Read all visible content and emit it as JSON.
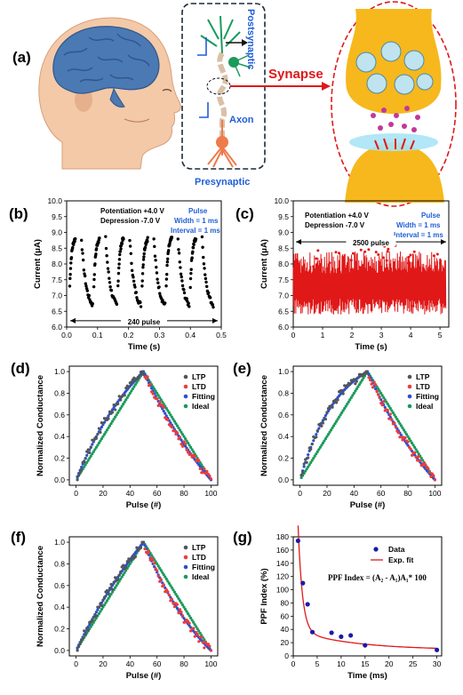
{
  "figure": {
    "panel_labels": [
      "(a)",
      "(b)",
      "(c)",
      "(d)",
      "(e)",
      "(f)",
      "(g)"
    ],
    "illustration": {
      "postsynaptic_label": "Postsynaptic",
      "axon_label": "Axon",
      "presynaptic_label": "Presynaptic",
      "synapse_label": "Synapse"
    },
    "colors": {
      "brain": "#4a79b4",
      "skin": "#f3c9a8",
      "synapse_gold": "#f6b81c",
      "red": "#e01818",
      "blue_text": "#1f5fd6",
      "ltp": "#555555",
      "ltd": "#ef3b3b",
      "fitting": "#2a4fd0",
      "ideal": "#1a9a5b"
    }
  },
  "chart_data": [
    {
      "panel": "(b)",
      "type": "scatter",
      "xlabel": "Time (s)",
      "ylabel": "Current (μA)",
      "xlim": [
        0.0,
        0.5
      ],
      "ylim": [
        6.0,
        10.0
      ],
      "xticks": [
        "0.0",
        "0.1",
        "0.2",
        "0.3",
        "0.4",
        "0.5"
      ],
      "yticks": [
        "6.0",
        "6.5",
        "7.0",
        "7.5",
        "8.0",
        "8.5",
        "9.0",
        "9.5",
        "10.0"
      ],
      "annotation_lines": [
        "Potentiation +4.0 V",
        "Depression -7.0 V"
      ],
      "pulse_lines": [
        "Pulse",
        "Width = 1 ms",
        "Interval = 1 ms"
      ],
      "arrow_label": "240 pulse",
      "cycles": 6,
      "cycle_period": 0.078,
      "x_start": 0.01,
      "low_value": 6.7,
      "high_value": 8.8
    },
    {
      "panel": "(c)",
      "type": "scatter",
      "xlabel": "Time (s)",
      "ylabel": "Current (μA)",
      "xlim": [
        0,
        5.3
      ],
      "ylim": [
        6.0,
        10.0
      ],
      "xticks": [
        "0",
        "1",
        "2",
        "3",
        "4",
        "5"
      ],
      "yticks": [
        "6.0",
        "6.5",
        "7.0",
        "7.5",
        "8.0",
        "8.5",
        "9.0",
        "9.5",
        "10.0"
      ],
      "annotation_lines": [
        "Potentiation +4.0 V",
        "Depression -7.0 V"
      ],
      "pulse_lines": [
        "Pulse",
        "Width = 1 ms",
        "Interval = 1 ms"
      ],
      "arrow_label": "2500 pulse",
      "x_end": 5.2,
      "low_value": 6.4,
      "high_value": 8.4
    },
    {
      "panel": "(d)",
      "type": "scatter",
      "xlabel": "Pulse (#)",
      "ylabel": "Normalized Conductance",
      "xlim": [
        -5,
        105
      ],
      "ylim": [
        -0.05,
        1.05
      ],
      "xticks": [
        "0",
        "20",
        "40",
        "60",
        "80",
        "100"
      ],
      "yticks": [
        "0.0",
        "0.2",
        "0.4",
        "0.6",
        "0.8",
        "1.0"
      ],
      "legend": [
        "LTP",
        "LTD",
        "Fitting",
        "Ideal"
      ],
      "ltp_curvature": 0.9,
      "ltd_curvature": 0.6
    },
    {
      "panel": "(e)",
      "type": "scatter",
      "xlabel": "Pulse (#)",
      "ylabel": "Normalized Conductance",
      "xlim": [
        -5,
        105
      ],
      "ylim": [
        -0.05,
        1.05
      ],
      "xticks": [
        "0",
        "20",
        "40",
        "60",
        "80",
        "100"
      ],
      "yticks": [
        "0.0",
        "0.2",
        "0.4",
        "0.6",
        "0.8",
        "1.0"
      ],
      "legend": [
        "LTP",
        "LTD",
        "Fitting",
        "Ideal"
      ],
      "ltp_curvature": 1.8,
      "ltd_curvature": 0.7
    },
    {
      "panel": "(f)",
      "type": "scatter",
      "xlabel": "Pulse (#)",
      "ylabel": "Normalized Conductance",
      "xlim": [
        -5,
        105
      ],
      "ylim": [
        -0.05,
        1.05
      ],
      "xticks": [
        "0",
        "20",
        "40",
        "60",
        "80",
        "100"
      ],
      "yticks": [
        "0.0",
        "0.2",
        "0.4",
        "0.6",
        "0.8",
        "1.0"
      ],
      "legend": [
        "LTP",
        "LTD",
        "Fitting",
        "Ideal"
      ],
      "ltp_curvature": 0.5,
      "ltd_curvature": 0.9
    },
    {
      "panel": "(g)",
      "type": "scatter",
      "xlabel": "Time (ms)",
      "ylabel": "PPF Index (%)",
      "xlim": [
        0,
        31
      ],
      "ylim": [
        0,
        180
      ],
      "xticks": [
        "0",
        "5",
        "10",
        "15",
        "20",
        "25",
        "30"
      ],
      "yticks": [
        "0",
        "20",
        "40",
        "60",
        "80",
        "100",
        "120",
        "140",
        "160",
        "180"
      ],
      "legend": [
        "Data",
        "Exp. fit"
      ],
      "formula": "PPF Index = (A₂ - A₁)A₁* 100",
      "x": [
        1,
        2,
        3,
        4,
        8,
        10,
        12,
        15,
        30
      ],
      "y": [
        174,
        110,
        78,
        36,
        35,
        29,
        31,
        16,
        9
      ]
    }
  ]
}
